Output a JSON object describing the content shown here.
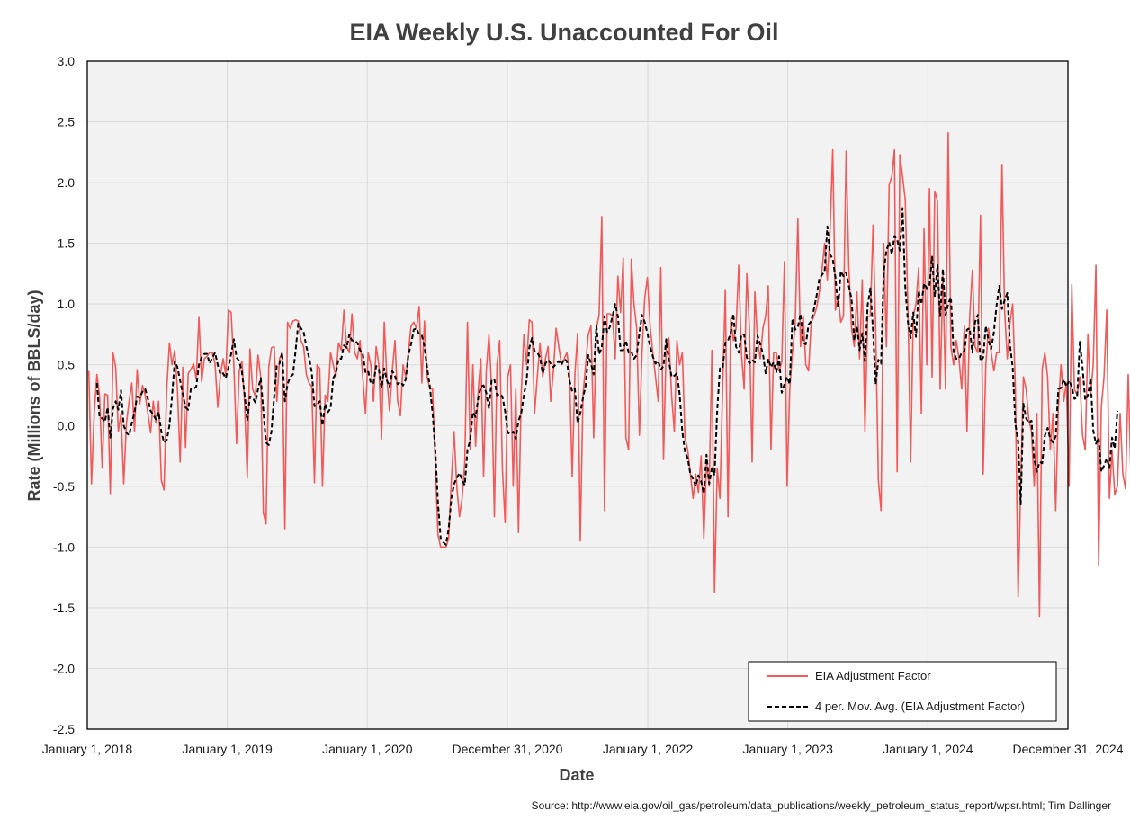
{
  "chart_data": {
    "type": "line",
    "title": "EIA Weekly U.S. Unaccounted For Oil",
    "xlabel": "Date",
    "ylabel": "Rate (Millions of BBLS/day)",
    "ylim": [
      -2.5,
      3.0
    ],
    "yticks": [
      "3.0",
      "2.5",
      "2.0",
      "1.5",
      "1.0",
      "0.5",
      "0.0",
      "-0.5",
      "-1.0",
      "-1.5",
      "-2.0",
      "-2.5"
    ],
    "ytick_values": [
      3.0,
      2.5,
      2.0,
      1.5,
      1.0,
      0.5,
      0.0,
      -0.5,
      -1.0,
      -1.5,
      -2.0,
      -2.5
    ],
    "xlim": [
      "2018-01-01",
      "2024-12-31"
    ],
    "xticks": [
      "January 1, 2018",
      "January 1, 2019",
      "January 1, 2020",
      "December 31, 2020",
      "January 1, 2022",
      "January 1, 2023",
      "January 1, 2024",
      "December 31, 2024"
    ],
    "xtick_dates": [
      "2018-01-01",
      "2019-01-01",
      "2020-01-01",
      "2020-12-31",
      "2022-01-01",
      "2023-01-01",
      "2024-01-01",
      "2024-12-31"
    ],
    "grid": true,
    "legend_position": "bottom-right",
    "first_week": "2018-01-05",
    "series": [
      {
        "name": "EIA Adjustment Factor",
        "color": "#f15a5a",
        "style": "solid",
        "values": [
          0.45,
          -0.48,
          0.1,
          0.42,
          0.25,
          -0.35,
          0.26,
          0.25,
          -0.56,
          0.6,
          0.48,
          -0.05,
          0.1,
          -0.48,
          0.02,
          0.2,
          0.35,
          -0.05,
          0.46,
          0.18,
          0.33,
          0.25,
          0.1,
          -0.06,
          0.2,
          0.02,
          0.2,
          -0.45,
          -0.53,
          0.3,
          0.68,
          0.5,
          0.62,
          0.3,
          -0.3,
          0.48,
          -0.18,
          0.43,
          0.46,
          0.51,
          0.38,
          0.89,
          0.36,
          0.55,
          0.57,
          0.6,
          0.6,
          0.51,
          0.15,
          0.42,
          0.55,
          0.42,
          0.95,
          0.93,
          0.5,
          -0.15,
          0.45,
          0.53,
          0.2,
          -0.43,
          0.63,
          0.3,
          0.24,
          0.58,
          0.4,
          -0.72,
          -0.81,
          0.48,
          0.64,
          0.65,
          0.2,
          0.55,
          0.6,
          -0.85,
          0.85,
          0.8,
          0.86,
          0.87,
          0.86,
          0.7,
          0.65,
          0.42,
          0.35,
          0.32,
          -0.47,
          0.5,
          0.47,
          -0.5,
          0.25,
          0.2,
          0.6,
          0.5,
          0.4,
          0.68,
          0.62,
          0.95,
          0.65,
          0.6,
          0.92,
          0.6,
          0.55,
          0.7,
          0.4,
          0.1,
          0.6,
          0.5,
          0.2,
          0.65,
          0.5,
          -0.11,
          0.85,
          0.38,
          0.12,
          0.45,
          0.7,
          0.2,
          0.08,
          0.5,
          0.4,
          0.6,
          0.82,
          0.85,
          0.8,
          0.98,
          0.35,
          0.86,
          0.4,
          0.3,
          0.3,
          -0.3,
          -0.9,
          -1.0,
          -1.0,
          -1.0,
          -0.93,
          -0.45,
          -0.05,
          -0.5,
          -0.75,
          -0.6,
          -0.3,
          0.85,
          -0.2,
          0.5,
          -0.17,
          0.3,
          0.55,
          -0.42,
          0.45,
          0.75,
          0.3,
          -0.75,
          0.5,
          0.7,
          -0.35,
          -0.8,
          0.4,
          0.5,
          -0.5,
          0.3,
          -0.88,
          0.25,
          0.75,
          0.5,
          0.87,
          0.85,
          0.1,
          0.4,
          0.68,
          0.4,
          0.55,
          0.65,
          0.2,
          0.45,
          0.8,
          0.65,
          0.5,
          0.55,
          0.6,
          0.45,
          -0.42,
          0.42,
          0.76,
          -0.95,
          0.25,
          0.5,
          0.75,
          0.82,
          -0.1,
          0.8,
          0.91,
          1.72,
          -0.7,
          0.92,
          0.92,
          0.9,
          0.55,
          1.23,
          0.93,
          1.38,
          -0.1,
          -0.2,
          1.37,
          1.0,
          0.8,
          -0.08,
          0.6,
          1.05,
          1.22,
          0.82,
          0.6,
          0.4,
          0.2,
          1.3,
          -0.28,
          0.67,
          0.72,
          0.25,
          -0.05,
          0.7,
          0.5,
          0.6,
          -0.1,
          -0.2,
          -0.4,
          -0.6,
          -0.4,
          -0.55,
          -0.25,
          -0.93,
          -0.3,
          -0.5,
          0.62,
          -1.37,
          -0.35,
          -0.6,
          0.3,
          1.12,
          -0.75,
          0.88,
          0.7,
          0.8,
          1.32,
          0.6,
          0.3,
          1.25,
          0.8,
          -0.3,
          1.1,
          0.7,
          0.55,
          0.8,
          0.9,
          1.15,
          -0.2,
          0.6,
          0.6,
          0.45,
          0.52,
          1.35,
          -0.5,
          0.3,
          0.6,
          0.82,
          1.7,
          0.65,
          0.9,
          0.5,
          0.45,
          0.85,
          0.9,
          0.97,
          1.1,
          1.28,
          1.5,
          1.2,
          1.6,
          2.27,
          0.95,
          1.07,
          0.85,
          0.9,
          2.26,
          1.3,
          0.8,
          0.65,
          1.1,
          0.55,
          1.2,
          -0.05,
          0.9,
          0.9,
          1.65,
          0.8,
          -0.45,
          -0.7,
          1.5,
          0.65,
          1.98,
          2.05,
          2.27,
          -0.38,
          2.23,
          2.05,
          1.86,
          0.95,
          -0.3,
          0.9,
          1.0,
          1.3,
          0.1,
          1.62,
          0.5,
          1.95,
          0.4,
          1.93,
          1.85,
          0.3,
          1.23,
          0.3,
          2.41,
          0.65,
          0.5,
          0.7,
          0.55,
          0.3,
          0.82,
          -0.05,
          0.9,
          1.28,
          0.65,
          0.6,
          1.73,
          -0.4,
          0.5,
          0.8,
          0.6,
          0.45,
          0.6,
          0.6,
          2.15,
          0.95,
          0.55,
          0.85,
          1.0,
          0.3,
          -1.41,
          -0.5,
          0.4,
          0.3,
          0.05,
          -0.05,
          -0.5,
          0.1,
          -1.57,
          0.47,
          0.6,
          0.4,
          -0.2,
          0.1,
          -0.7,
          0.15,
          0.5,
          0.2,
          0.35,
          -0.5,
          1.16,
          0.3,
          0.25,
          0.4,
          -0.08,
          -0.2,
          0.75,
          0.25,
          0.5,
          1.32,
          -1.15,
          0.15,
          0.4,
          0.95,
          -0.6,
          -0.2,
          -0.57,
          -0.5,
          0.1,
          -0.4,
          -0.52,
          0.42,
          -0.4,
          0.2,
          0.32
        ]
      },
      {
        "name": "4 per. Mov. Avg. (EIA Adjustment Factor)",
        "color": "#000000",
        "style": "dashed",
        "values": [
          null,
          null,
          null,
          0.35,
          0.07,
          0.06,
          0.03,
          0.15,
          -0.1,
          0.14,
          0.2,
          0.13,
          0.29,
          0.0,
          -0.06,
          -0.08,
          0.02,
          0.11,
          0.24,
          0.23,
          0.28,
          0.3,
          0.22,
          0.12,
          0.09,
          0.05,
          0.11,
          -0.05,
          -0.14,
          -0.12,
          0.0,
          0.24,
          0.53,
          0.48,
          0.37,
          0.26,
          0.15,
          0.13,
          0.3,
          0.3,
          0.32,
          0.5,
          0.56,
          0.59,
          0.59,
          0.51,
          0.56,
          0.6,
          0.5,
          0.42,
          0.43,
          0.39,
          0.48,
          0.59,
          0.71,
          0.56,
          0.53,
          0.44,
          0.26,
          0.04,
          0.24,
          0.23,
          0.19,
          0.3,
          0.39,
          0.12,
          -0.14,
          -0.16,
          -0.05,
          0.24,
          0.5,
          0.51,
          0.6,
          0.2,
          0.34,
          0.4,
          0.42,
          0.62,
          0.84,
          0.8,
          0.77,
          0.65,
          0.56,
          0.44,
          0.16,
          0.17,
          0.2,
          0.0,
          0.18,
          0.11,
          0.14,
          0.39,
          0.43,
          0.55,
          0.55,
          0.66,
          0.64,
          0.75,
          0.7,
          0.7,
          0.68,
          0.62,
          0.59,
          0.44,
          0.45,
          0.35,
          0.35,
          0.49,
          0.46,
          0.31,
          0.47,
          0.37,
          0.32,
          0.45,
          0.41,
          0.34,
          0.36,
          0.33,
          0.38,
          0.58,
          0.67,
          0.79,
          0.8,
          0.75,
          0.74,
          0.65,
          0.47,
          0.32,
          0.1,
          -0.2,
          -0.64,
          -0.93,
          -0.96,
          -0.98,
          -0.85,
          -0.6,
          -0.48,
          -0.43,
          -0.39,
          -0.45,
          -0.49,
          -0.2,
          -0.12,
          0.11,
          0.07,
          0.23,
          0.32,
          0.33,
          0.27,
          0.14,
          0.38,
          0.38,
          0.25,
          0.26,
          0.24,
          0.12,
          -0.06,
          -0.07,
          -0.05,
          -0.11,
          0.04,
          0.1,
          0.25,
          0.37,
          0.64,
          0.72,
          0.61,
          0.6,
          0.56,
          0.43,
          0.51,
          0.54,
          0.51,
          0.48,
          0.51,
          0.53,
          0.5,
          0.55,
          0.53,
          0.37,
          0.28,
          0.3,
          0.02,
          0.1,
          0.23,
          0.33,
          0.58,
          0.51,
          0.42,
          0.82,
          0.59,
          0.64,
          0.9,
          0.77,
          0.81,
          0.9,
          1.0,
          0.9,
          0.62,
          0.62,
          0.7,
          0.6,
          0.61,
          0.55,
          0.58,
          0.76,
          0.91,
          0.85,
          0.76,
          0.65,
          0.57,
          0.51,
          0.53,
          0.46,
          0.49,
          0.71,
          0.53,
          0.4,
          0.41,
          0.43,
          0.26,
          -0.05,
          -0.22,
          -0.27,
          -0.4,
          -0.44,
          -0.5,
          -0.41,
          -0.46,
          -0.56,
          -0.24,
          -0.48,
          -0.35,
          -0.41,
          0.13,
          0.47,
          0.47,
          0.68,
          0.7,
          0.76,
          0.92,
          0.65,
          0.6,
          0.75,
          0.75,
          0.56,
          0.51,
          0.54,
          0.52,
          0.74,
          0.67,
          0.59,
          0.43,
          0.55,
          0.48,
          0.52,
          0.44,
          0.57,
          0.27,
          0.34,
          0.4,
          0.34,
          0.88,
          0.79,
          0.81,
          0.92,
          0.68,
          0.67,
          0.83,
          0.86,
          0.96,
          1.07,
          1.21,
          1.24,
          1.27,
          1.64,
          1.41,
          1.37,
          1.22,
          0.97,
          1.27,
          1.23,
          1.26,
          1.15,
          1.04,
          0.7,
          0.82,
          0.62,
          0.76,
          0.53,
          0.99,
          1.13,
          0.78,
          0.34,
          0.54,
          0.51,
          1.27,
          1.44,
          1.51,
          1.41,
          1.56,
          1.53,
          1.44,
          1.79,
          1.14,
          0.85,
          0.72,
          0.93,
          0.73,
          1.11,
          1.0,
          1.17,
          1.13,
          1.15,
          1.39,
          1.06,
          1.32,
          0.9,
          1.29,
          0.91,
          1.0,
          1.06,
          0.61,
          0.55,
          0.55,
          0.6,
          0.61,
          0.79,
          0.8,
          0.6,
          0.85,
          0.91,
          0.53,
          0.56,
          0.82,
          0.7,
          0.63,
          0.77,
          0.99,
          1.15,
          0.96,
          1.03,
          1.09,
          0.66,
          0.48,
          0.01,
          -0.13,
          -0.65,
          0.18,
          0.06,
          0.02,
          0.04,
          -0.28,
          -0.38,
          -0.3,
          -0.31,
          -0.08,
          -0.02,
          -0.11,
          -0.14,
          -0.09,
          0.3,
          0.31,
          0.38,
          0.32,
          0.37,
          0.32,
          0.22,
          0.23,
          0.69,
          0.48,
          0.21,
          0.25,
          0.39,
          -0.04,
          -0.15,
          -0.1,
          -0.38,
          -0.33,
          -0.27,
          -0.35,
          -0.1,
          -0.19,
          0.12
        ]
      }
    ],
    "source": "Source: http://www.eia.gov/oil_gas/petroleum/data_publications/weekly_petroleum_status_report/wpsr.html; Tim Dallinger",
    "colors": {
      "plot_background": "#f2f2f2",
      "gridline": "#d9d9d9",
      "axis": "#000000"
    }
  }
}
